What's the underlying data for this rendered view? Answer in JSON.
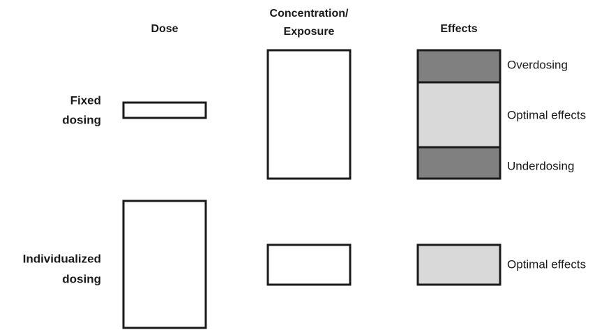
{
  "columns": [
    {
      "lines": [
        "Dose"
      ]
    },
    {
      "lines": [
        "Concentration/",
        "Exposure"
      ]
    },
    {
      "lines": [
        "Effects"
      ]
    }
  ],
  "rows": [
    {
      "lines": [
        "Fixed",
        "dosing"
      ],
      "effects": [
        "Overdosing",
        "Optimal effects",
        "Underdosing"
      ]
    },
    {
      "lines": [
        "Individualized",
        "dosing"
      ],
      "effects": [
        "Optimal effects"
      ]
    }
  ]
}
